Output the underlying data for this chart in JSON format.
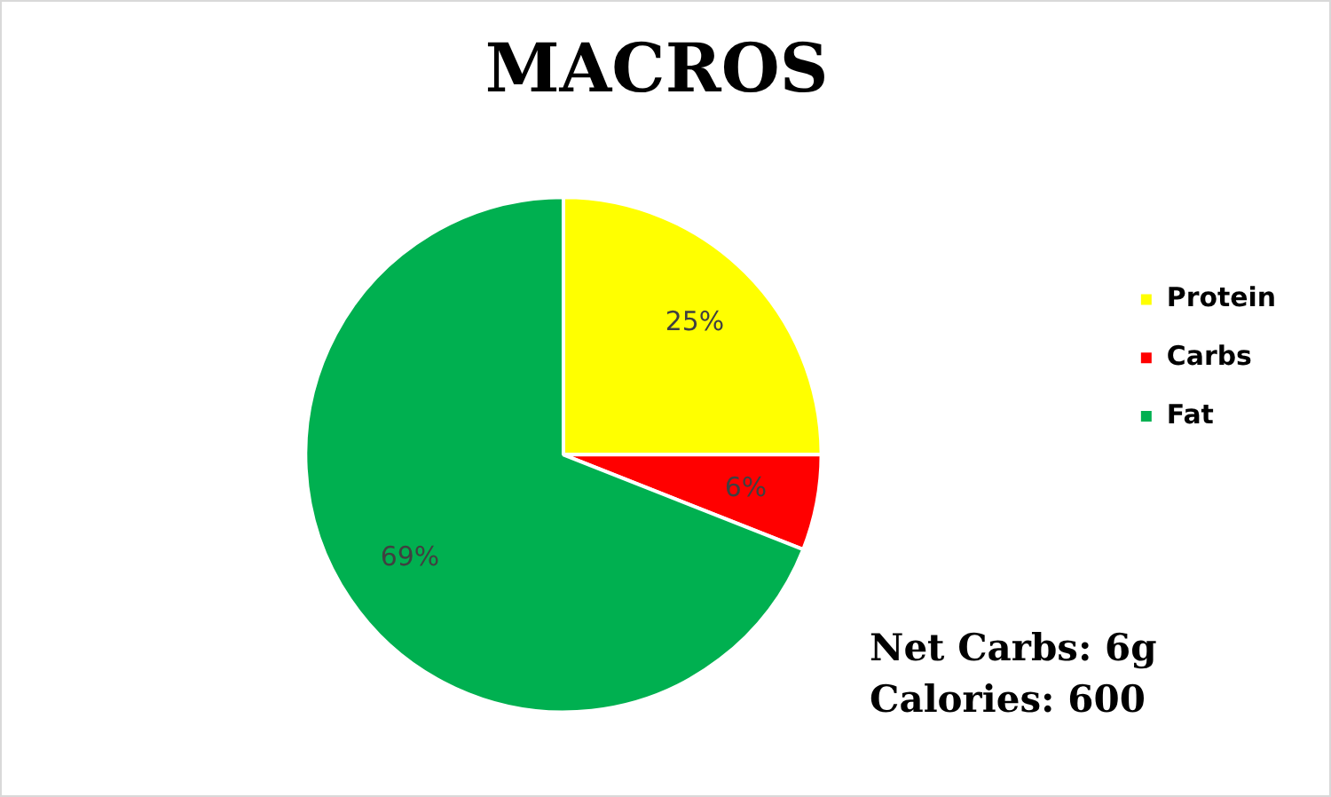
{
  "chart_data": {
    "type": "pie",
    "title": "MACROS",
    "categories": [
      "Protein",
      "Carbs",
      "Fat"
    ],
    "values": [
      25,
      6,
      69
    ],
    "colors": [
      "#ffff00",
      "#ff0000",
      "#00b050"
    ],
    "value_labels": [
      "25%",
      "6%",
      "69%"
    ],
    "legend": "right",
    "annotations": [
      "Net Carbs: 6g",
      "Calories: 600"
    ]
  }
}
